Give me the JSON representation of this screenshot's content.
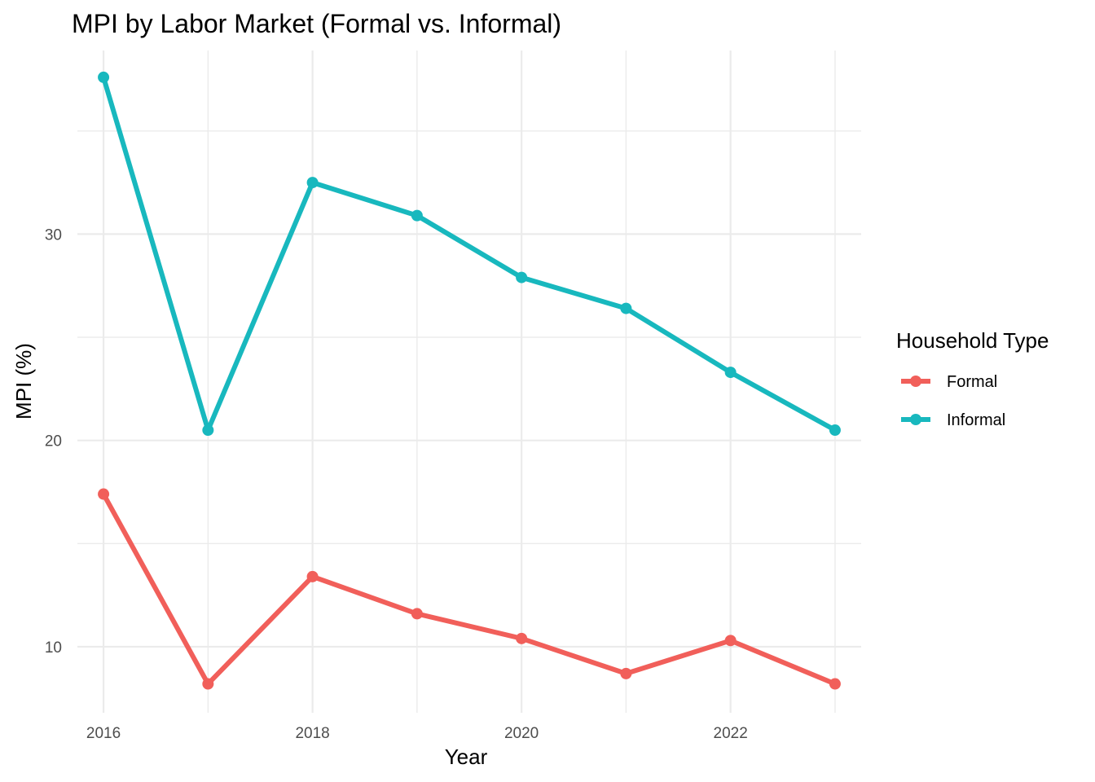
{
  "chart_data": {
    "type": "line",
    "title": "MPI by Labor Market (Formal vs. Informal)",
    "xlabel": "Year",
    "ylabel": "MPI (%)",
    "x": [
      2016,
      2017,
      2018,
      2019,
      2020,
      2021,
      2022,
      2023
    ],
    "x_ticks": [
      2016,
      2018,
      2020,
      2022
    ],
    "y_ticks": [
      10,
      20,
      30
    ],
    "xlim": [
      2015.75,
      2023.25
    ],
    "ylim": [
      6.8,
      38.9
    ],
    "grid": true,
    "legend": {
      "title": "Household Type",
      "position": "right"
    },
    "series": [
      {
        "name": "Formal",
        "color": "#f15f5a",
        "values": [
          17.4,
          8.2,
          13.4,
          11.6,
          10.4,
          8.7,
          10.3,
          8.2
        ]
      },
      {
        "name": "Informal",
        "color": "#18b8be",
        "values": [
          37.6,
          20.5,
          32.5,
          30.9,
          27.9,
          26.4,
          23.3,
          20.5
        ]
      }
    ]
  }
}
